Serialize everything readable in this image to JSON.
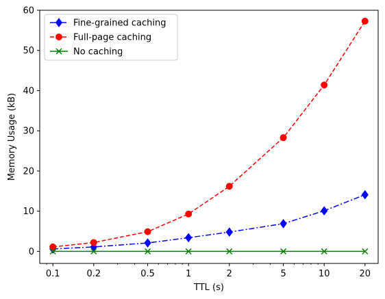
{
  "chart_data": {
    "type": "line",
    "title": "",
    "xlabel": "TTL (s)",
    "ylabel": "Memory Usage (kB)",
    "x_scale": "log",
    "x": [
      0.1,
      0.2,
      0.5,
      1,
      2,
      5,
      10,
      20
    ],
    "x_tick_labels": [
      "0.1",
      "0.2",
      "0.5",
      "1",
      "2",
      "5",
      "10",
      "20"
    ],
    "xlim": [
      0.08,
      25
    ],
    "ylim": [
      -3,
      60
    ],
    "y_ticks": [
      0,
      10,
      20,
      30,
      40,
      50,
      60
    ],
    "y_tick_labels": [
      "0",
      "10",
      "20",
      "30",
      "40",
      "50",
      "60"
    ],
    "grid": false,
    "legend_position": "top-left",
    "series": [
      {
        "name": "Fine-grained caching",
        "values": [
          0.6,
          1.1,
          2.1,
          3.4,
          4.8,
          6.9,
          10.1,
          14.1
        ],
        "color": "#0000ff",
        "line_style": "dash-dot",
        "marker": "diamond"
      },
      {
        "name": "Full-page caching",
        "values": [
          1.1,
          2.2,
          4.9,
          9.3,
          16.2,
          28.3,
          41.4,
          57.3
        ],
        "color": "#ff0000",
        "line_style": "dashed",
        "marker": "circle"
      },
      {
        "name": "No caching",
        "values": [
          0.0,
          0.0,
          0.0,
          0.0,
          0.0,
          0.0,
          0.0,
          0.0
        ],
        "color": "#008000",
        "line_style": "solid",
        "marker": "x"
      }
    ]
  }
}
